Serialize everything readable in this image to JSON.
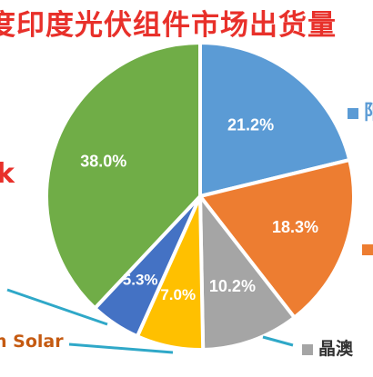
{
  "chart_data": {
    "type": "pie",
    "title": "度印度光伏组件市场出货量",
    "values": [
      21.2,
      18.3,
      10.2,
      7.0,
      5.3,
      38.0
    ],
    "labels": [
      "21.2%",
      "18.3%",
      "10.2%",
      "7.0%",
      "5.3%",
      "38.0%"
    ],
    "colors": [
      "#5b9bd5",
      "#ed7d31",
      "#a5a5a5",
      "#ffc000",
      "#4472c4",
      "#70ad47"
    ],
    "start_direction": "12 o'clock",
    "direction": "clockwise",
    "legend_placement": "right",
    "callout_labels": [
      "Solar",
      "晶澳"
    ],
    "edge_text": {
      "legend_top_fragment": "阳",
      "left_glyph": "k",
      "bottom_left_fragment": "n Solar",
      "bottom_right_fragment": "晶澳"
    }
  }
}
